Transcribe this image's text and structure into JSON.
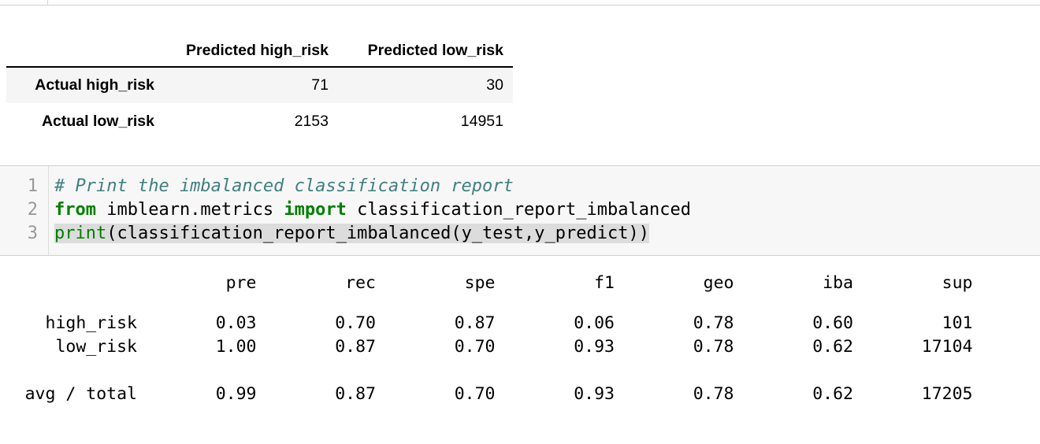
{
  "confusion_matrix": {
    "corner": "",
    "columns": [
      "Predicted high_risk",
      "Predicted low_risk"
    ],
    "rows": [
      {
        "label": "Actual high_risk",
        "values": [
          "71",
          "30"
        ]
      },
      {
        "label": "Actual low_risk",
        "values": [
          "2153",
          "14951"
        ]
      }
    ]
  },
  "code_cell": {
    "line_numbers": [
      "1",
      "2",
      "3"
    ],
    "line1_comment": "# Print the imbalanced classification report",
    "line2_from": "from",
    "line2_module": " imblearn.metrics ",
    "line2_import": "import",
    "line2_name": " classification_report_imbalanced",
    "line3_print": "print",
    "line3_rest": "(classification_report_imbalanced(y_test,y_predict))"
  },
  "report": {
    "header": [
      "",
      "pre",
      "rec",
      "spe",
      "f1",
      "geo",
      "iba",
      "sup"
    ],
    "rows": [
      {
        "label": "high_risk",
        "values": [
          "0.03",
          "0.70",
          "0.87",
          "0.06",
          "0.78",
          "0.60",
          "101"
        ]
      },
      {
        "label": "low_risk",
        "values": [
          "1.00",
          "0.87",
          "0.70",
          "0.93",
          "0.78",
          "0.62",
          "17104"
        ]
      }
    ],
    "total": {
      "label": "avg / total",
      "values": [
        "0.99",
        "0.87",
        "0.70",
        "0.93",
        "0.78",
        "0.62",
        "17205"
      ]
    }
  },
  "colors": {
    "comment": "#408080",
    "keyword": "#008000",
    "line_number": "#999999",
    "cell_background": "#f7f7f7",
    "striped_row": "#f5f5f5"
  }
}
